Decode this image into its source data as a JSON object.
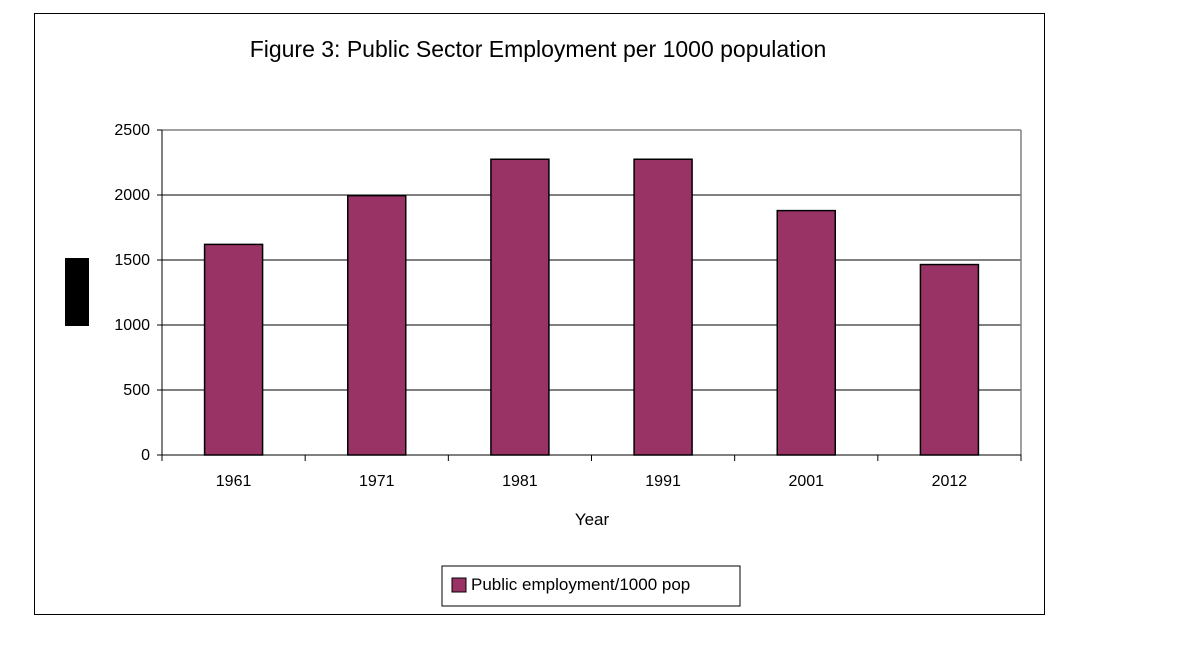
{
  "chart_data": {
    "type": "bar",
    "title": "Figure 3: Public Sector Employment per 1000 population",
    "xlabel": "Year",
    "ylabel": "",
    "categories": [
      "1961",
      "1971",
      "1981",
      "1991",
      "2001",
      "2012"
    ],
    "series": [
      {
        "name": "Public employment/1000 pop",
        "values": [
          1620,
          1995,
          2275,
          2275,
          1880,
          1465
        ],
        "color": "#993366"
      }
    ],
    "ylim": [
      0,
      2500
    ],
    "yticks": [
      "0",
      "500",
      "1000",
      "1500",
      "2000",
      "2500"
    ],
    "grid": true,
    "plot_background": "#ffffff",
    "legend_position": "bottom-center"
  }
}
